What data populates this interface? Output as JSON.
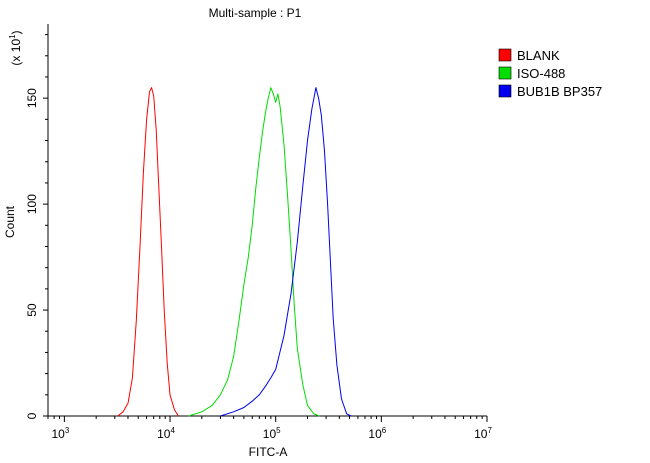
{
  "chart_data": {
    "type": "line",
    "title": "Multi-sample : P1",
    "xlabel": "FITC-A",
    "ylabel": "Count",
    "y_multiplier_label": "(x 10",
    "y_multiplier_exp": "1",
    "x_scale": "log",
    "xlim": [
      700,
      10000000
    ],
    "ylim": [
      0,
      185
    ],
    "x_ticks": [
      {
        "base": "10",
        "exp": "3",
        "value": 1000
      },
      {
        "base": "10",
        "exp": "4",
        "value": 10000
      },
      {
        "base": "10",
        "exp": "5",
        "value": 100000
      },
      {
        "base": "10",
        "exp": "6",
        "value": 1000000
      },
      {
        "base": "10",
        "exp": "7",
        "value": 10000000
      }
    ],
    "y_ticks": [
      0,
      50,
      100,
      150
    ],
    "legend_position": "top-right",
    "series": [
      {
        "name": "BLANK",
        "color": "#ff0000",
        "points": [
          [
            3200,
            0
          ],
          [
            3600,
            2
          ],
          [
            4000,
            6
          ],
          [
            4400,
            18
          ],
          [
            4800,
            45
          ],
          [
            5200,
            80
          ],
          [
            5600,
            115
          ],
          [
            6000,
            140
          ],
          [
            6400,
            153
          ],
          [
            6700,
            155
          ],
          [
            7000,
            151
          ],
          [
            7400,
            135
          ],
          [
            7800,
            110
          ],
          [
            8300,
            80
          ],
          [
            8800,
            50
          ],
          [
            9400,
            25
          ],
          [
            10000,
            10
          ],
          [
            11000,
            3
          ],
          [
            12000,
            0
          ]
        ]
      },
      {
        "name": "ISO-488",
        "color": "#00dd00",
        "points": [
          [
            15000,
            0
          ],
          [
            20000,
            2
          ],
          [
            25000,
            5
          ],
          [
            30000,
            10
          ],
          [
            35000,
            17
          ],
          [
            40000,
            28
          ],
          [
            45000,
            45
          ],
          [
            50000,
            62
          ],
          [
            55000,
            75
          ],
          [
            60000,
            90
          ],
          [
            65000,
            108
          ],
          [
            70000,
            122
          ],
          [
            75000,
            134
          ],
          [
            80000,
            143
          ],
          [
            85000,
            150
          ],
          [
            90000,
            155
          ],
          [
            95000,
            152
          ],
          [
            100000,
            148
          ],
          [
            105000,
            152
          ],
          [
            110000,
            146
          ],
          [
            120000,
            128
          ],
          [
            130000,
            103
          ],
          [
            140000,
            78
          ],
          [
            150000,
            52
          ],
          [
            160000,
            32
          ],
          [
            180000,
            15
          ],
          [
            200000,
            5
          ],
          [
            230000,
            1
          ],
          [
            260000,
            0
          ]
        ]
      },
      {
        "name": "BUB1B BP357",
        "color": "#0000ee",
        "points": [
          [
            30000,
            0
          ],
          [
            40000,
            2
          ],
          [
            50000,
            4
          ],
          [
            60000,
            7
          ],
          [
            70000,
            10
          ],
          [
            80000,
            14
          ],
          [
            90000,
            18
          ],
          [
            100000,
            22
          ],
          [
            120000,
            38
          ],
          [
            140000,
            58
          ],
          [
            160000,
            82
          ],
          [
            180000,
            108
          ],
          [
            200000,
            130
          ],
          [
            220000,
            145
          ],
          [
            240000,
            155
          ],
          [
            255000,
            150
          ],
          [
            270000,
            142
          ],
          [
            290000,
            125
          ],
          [
            310000,
            100
          ],
          [
            330000,
            72
          ],
          [
            350000,
            46
          ],
          [
            380000,
            24
          ],
          [
            420000,
            8
          ],
          [
            470000,
            1
          ],
          [
            520000,
            0
          ]
        ]
      }
    ]
  }
}
